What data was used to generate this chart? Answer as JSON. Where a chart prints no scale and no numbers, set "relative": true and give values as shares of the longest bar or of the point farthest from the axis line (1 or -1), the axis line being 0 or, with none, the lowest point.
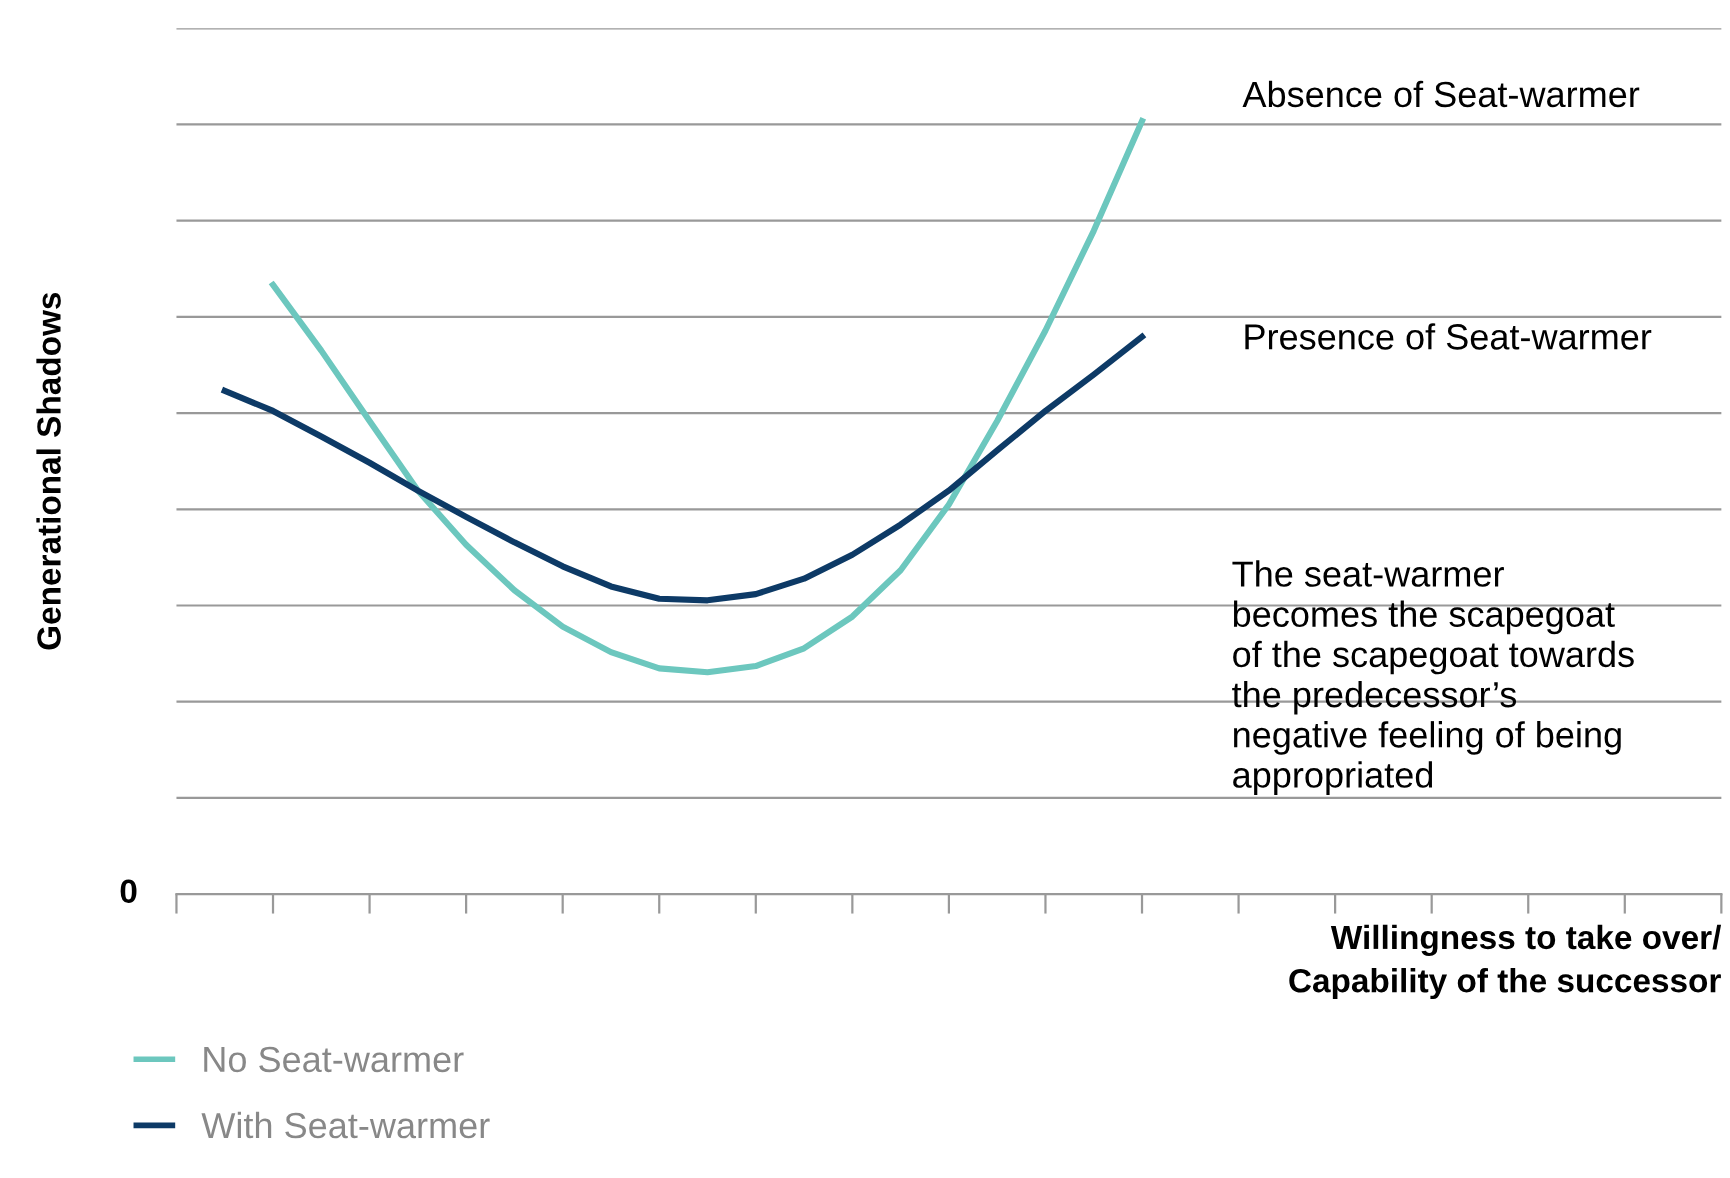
{
  "chart_data": {
    "type": "line",
    "relative": true,
    "ylabel": "Generational Shadows",
    "xlabel": "Willingness to take over/\nCapability of the successor",
    "categories": [
      null,
      null,
      null,
      null,
      null,
      null,
      null,
      null,
      null,
      null,
      null,
      null,
      null,
      null,
      null,
      null,
      null,
      null,
      null,
      null,
      null,
      null,
      null,
      null,
      null,
      null,
      null,
      null,
      null,
      null,
      null,
      null,
      null
    ],
    "series": [
      {
        "name": "No Seat-warmer",
        "color": "#6cc7be",
        "values": [
          null,
          null,
          0.788,
          0.703,
          0.612,
          0.522,
          0.452,
          0.393,
          0.346,
          0.313,
          0.292,
          0.287,
          0.295,
          0.318,
          0.359,
          0.419,
          0.504,
          0.612,
          0.729,
          0.858,
          1,
          null,
          null,
          null,
          null,
          null,
          null,
          null,
          null,
          null,
          null,
          null,
          null
        ]
      },
      {
        "name": "With Seat-warmer",
        "color": "#0d3a66",
        "values": [
          null,
          0.651,
          0.625,
          0.592,
          0.558,
          0.522,
          0.488,
          0.455,
          0.424,
          0.398,
          0.382,
          0.38,
          0.388,
          0.408,
          0.439,
          0.478,
          0.522,
          0.574,
          0.625,
          0.672,
          0.721,
          null,
          null,
          null,
          null,
          null,
          null,
          null,
          null,
          null,
          null,
          null,
          null
        ]
      }
    ],
    "annotations": [
      "0",
      "Absence of Seat-warmer",
      "Presence of Seat-warmer",
      "The seat-warmer\nbecomes the scapegoat\nof the scapegoat towards\nthe predecessor’s\nnegative feeling of being\nappropriated"
    ],
    "grid": "y",
    "legend": "bottom left",
    "line_style": "solid",
    "marker": "none"
  }
}
